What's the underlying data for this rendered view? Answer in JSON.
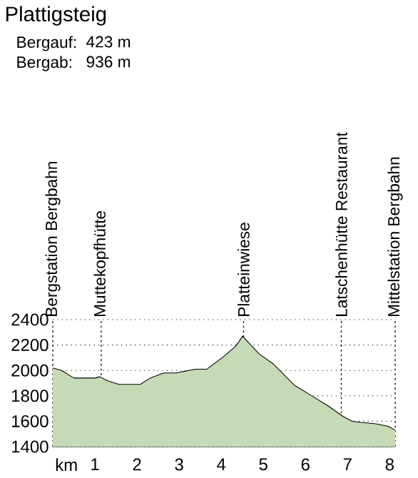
{
  "chart_data": {
    "type": "area",
    "title": "Plattigsteig",
    "annotations": [
      "Bergauf:",
      "423 m",
      "Bergab:",
      "936 m"
    ],
    "xlabel": "km",
    "x": [
      0,
      0.21,
      0.5,
      0.72,
      1.0,
      1.12,
      1.29,
      1.57,
      2.08,
      2.31,
      2.64,
      2.93,
      3.38,
      3.66,
      4.06,
      4.34,
      4.51,
      4.62,
      4.9,
      5.24,
      5.75,
      6.2,
      6.54,
      6.88,
      7.11,
      7.33,
      7.67,
      7.96,
      8.13
    ],
    "series": [
      {
        "color": "#c6dbb5",
        "values": [
          2020,
          2000,
          1940,
          1940,
          1940,
          1950,
          1920,
          1890,
          1890,
          1940,
          1980,
          1980,
          2010,
          2010,
          2110,
          2190,
          2270,
          2230,
          2130,
          2050,
          1880,
          1790,
          1720,
          1640,
          1600,
          1590,
          1580,
          1560,
          1530
        ]
      }
    ],
    "xlim": [
      0,
      8.13
    ],
    "ylim": [
      1400,
      2400
    ],
    "xticks": [
      1,
      2,
      3,
      4,
      5,
      6,
      7,
      8
    ],
    "yticks": [
      1400,
      1600,
      1800,
      2000,
      2200,
      2400
    ],
    "grid": "y",
    "ref_lines": [
      {
        "axis": "x",
        "value": 0,
        "label": "Bergstation Bergbahn",
        "line_style": "dotted"
      },
      {
        "axis": "x",
        "value": 1.15,
        "label": "Muttekopfhütte",
        "line_style": "dotted"
      },
      {
        "axis": "x",
        "value": 4.53,
        "label": "Platteinwiese",
        "line_style": "dotted"
      },
      {
        "axis": "x",
        "value": 6.85,
        "label": "Latschenhütte Restaurant",
        "line_style": "dotted"
      },
      {
        "axis": "x",
        "value": 8.13,
        "label": "Mittelstation Bergbahn",
        "line_style": "dotted"
      }
    ]
  }
}
